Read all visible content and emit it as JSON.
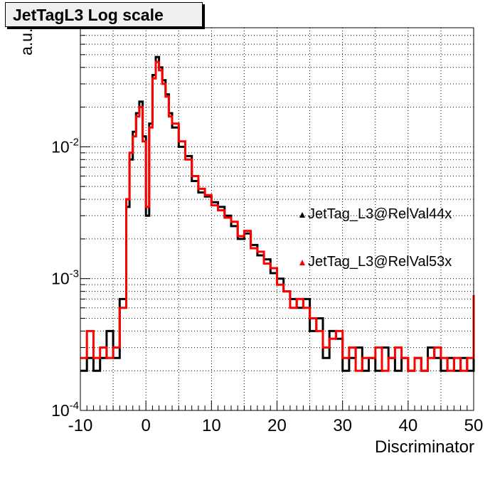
{
  "title": "JetTagL3 Log scale",
  "chart_data": {
    "type": "line",
    "subtype": "step-histogram",
    "title": "JetTagL3 Log scale",
    "xlabel": "Discriminator",
    "ylabel": "a.u.",
    "xlim": [
      -10,
      50
    ],
    "ylim": [
      0.0001,
      0.08
    ],
    "yscale": "log",
    "grid": true,
    "legend_placement": "right",
    "x_ticks": [
      "-10",
      "0",
      "10",
      "20",
      "30",
      "40",
      "50"
    ],
    "y_ticks": [
      {
        "base": "10",
        "exp": "-4",
        "value": 0.0001
      },
      {
        "base": "10",
        "exp": "-3",
        "value": 0.001
      },
      {
        "base": "10",
        "exp": "-2",
        "value": 0.01
      }
    ],
    "series": [
      {
        "name": "JetTag_L3@RelVal44x",
        "color": "#000000",
        "x": [
          -10,
          -9,
          -8,
          -7,
          -6,
          -5,
          -4,
          -3,
          -2.5,
          -2,
          -1.5,
          -1,
          -0.5,
          0,
          0.5,
          1,
          1.5,
          2,
          2.5,
          3,
          3.5,
          4,
          5,
          6,
          7,
          8,
          9,
          10,
          11,
          12,
          13,
          14,
          15,
          16,
          17,
          18,
          19,
          20,
          21,
          22,
          23,
          24,
          25,
          26,
          27,
          28,
          29,
          30,
          31,
          32,
          33,
          34,
          35,
          36,
          37,
          38,
          39,
          40,
          41,
          42,
          43,
          44,
          45,
          46,
          47,
          48,
          49,
          50
        ],
        "values": [
          0.0002,
          0.00025,
          0.0002,
          0.00025,
          0.0004,
          0.00025,
          0.0007,
          0.0035,
          0.008,
          0.013,
          0.018,
          0.022,
          0.012,
          0.003,
          0.015,
          0.035,
          0.048,
          0.04,
          0.032,
          0.025,
          0.018,
          0.014,
          0.01,
          0.0085,
          0.0055,
          0.0045,
          0.0042,
          0.0038,
          0.0035,
          0.003,
          0.0025,
          0.002,
          0.0022,
          0.0018,
          0.0015,
          0.0014,
          0.0011,
          0.001,
          0.0008,
          0.0007,
          0.0006,
          0.0007,
          0.0004,
          0.0005,
          0.00025,
          0.0004,
          0.00035,
          0.0002,
          0.00025,
          0.0003,
          0.0002,
          0.00025,
          0.0002,
          0.0003,
          0.00025,
          0.0002,
          0.00025,
          0.0002,
          0.00025,
          0.0002,
          0.0003,
          0.00025,
          0.0002,
          0.00025,
          0.0002,
          0.00025,
          0.0002,
          0.00025
        ]
      },
      {
        "name": "JetTag_L3@RelVal53x",
        "color": "#ff0000",
        "x": [
          -10,
          -9,
          -8,
          -7,
          -6,
          -5,
          -4,
          -3,
          -2.5,
          -2,
          -1.5,
          -1,
          -0.5,
          0,
          0.5,
          1,
          1.5,
          2,
          2.5,
          3,
          3.5,
          4,
          5,
          6,
          7,
          8,
          9,
          10,
          11,
          12,
          13,
          14,
          15,
          16,
          17,
          18,
          19,
          20,
          21,
          22,
          23,
          24,
          25,
          26,
          27,
          28,
          29,
          30,
          31,
          32,
          33,
          34,
          35,
          36,
          37,
          38,
          39,
          40,
          41,
          42,
          43,
          44,
          45,
          46,
          47,
          48,
          49,
          50
        ],
        "values": [
          0.00025,
          0.0004,
          0.00025,
          0.0003,
          0.00025,
          0.0003,
          0.0006,
          0.004,
          0.009,
          0.012,
          0.017,
          0.02,
          0.011,
          0.0035,
          0.014,
          0.033,
          0.044,
          0.038,
          0.03,
          0.024,
          0.017,
          0.015,
          0.011,
          0.008,
          0.006,
          0.0048,
          0.0043,
          0.0036,
          0.0033,
          0.0029,
          0.0027,
          0.0021,
          0.0023,
          0.0017,
          0.0016,
          0.0013,
          0.0012,
          0.0009,
          0.0008,
          0.0006,
          0.0007,
          0.0006,
          0.0005,
          0.0004,
          0.0003,
          0.00035,
          0.0004,
          0.00025,
          0.0003,
          0.0002,
          0.00025,
          0.00025,
          0.0003,
          0.0002,
          0.00025,
          0.0003,
          0.00025,
          0.0002,
          0.00025,
          0.0002,
          0.00025,
          0.0003,
          0.00025,
          0.0002,
          0.00025,
          0.0002,
          0.00025,
          0.00075
        ]
      }
    ]
  }
}
